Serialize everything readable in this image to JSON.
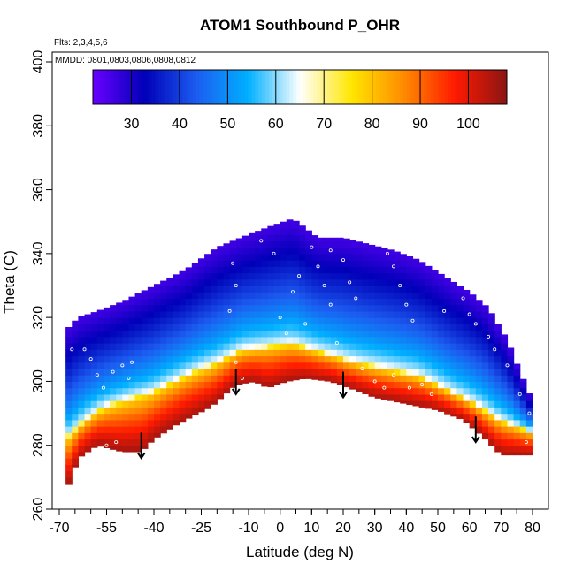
{
  "chart_data": {
    "type": "heatmap",
    "title": "ATOM1 Southbound P_OHR",
    "flights_note": "Flts: 2,3,4,5,6",
    "dates_note": "MMDD: 0801,0803,0806,0808,0812",
    "xlabel": "Latitude (deg N)",
    "ylabel": "Theta (C)",
    "xlim": [
      -70,
      80
    ],
    "ylim": [
      260,
      400
    ],
    "x_ticks": [
      -70,
      -55,
      -40,
      -25,
      -10,
      0,
      10,
      20,
      30,
      40,
      50,
      60,
      70,
      80
    ],
    "x_tick_labels": [
      "-70",
      "-55",
      "-40",
      "-25",
      "-10",
      "0",
      "10",
      "20",
      "30",
      "40",
      "50",
      "60",
      "70",
      "80"
    ],
    "y_ticks": [
      260,
      280,
      300,
      320,
      340,
      360,
      380,
      400
    ],
    "y_tick_labels": [
      "260",
      "280",
      "300",
      "320",
      "340",
      "360",
      "380",
      "400"
    ],
    "colorbar": {
      "range": [
        22,
        108
      ],
      "ticks": [
        30,
        40,
        50,
        60,
        70,
        80,
        90,
        100
      ],
      "tick_labels": [
        "30",
        "40",
        "50",
        "60",
        "70",
        "80",
        "90",
        "100"
      ],
      "palette": [
        "#6a00ff",
        "#0000b8",
        "#1c5cf0",
        "#00b0ff",
        "#ffffff",
        "#ffe600",
        "#ff8c00",
        "#ff1a00",
        "#8b1515"
      ]
    },
    "curtain": {
      "lat_start": -68,
      "lat_end": 80,
      "lat_step": 2,
      "bottom_profile": [
        [
          -68,
          265
        ],
        [
          -64,
          276
        ],
        [
          -58,
          280
        ],
        [
          -50,
          278
        ],
        [
          -44,
          278
        ],
        [
          -40,
          282
        ],
        [
          -32,
          287
        ],
        [
          -22,
          292
        ],
        [
          -14,
          299
        ],
        [
          -8,
          300
        ],
        [
          -4,
          298
        ],
        [
          2,
          300
        ],
        [
          8,
          301
        ],
        [
          16,
          300
        ],
        [
          22,
          298
        ],
        [
          30,
          295
        ],
        [
          40,
          293
        ],
        [
          50,
          291
        ],
        [
          58,
          288
        ],
        [
          64,
          283
        ],
        [
          70,
          277
        ],
        [
          80,
          277
        ]
      ],
      "top_profile": [
        [
          -68,
          316
        ],
        [
          -64,
          320
        ],
        [
          -58,
          322
        ],
        [
          -50,
          325
        ],
        [
          -40,
          330
        ],
        [
          -30,
          335
        ],
        [
          -20,
          342
        ],
        [
          -10,
          346
        ],
        [
          -2,
          349
        ],
        [
          4,
          351
        ],
        [
          12,
          345
        ],
        [
          20,
          345
        ],
        [
          28,
          343
        ],
        [
          36,
          341
        ],
        [
          44,
          338
        ],
        [
          52,
          333
        ],
        [
          60,
          328
        ],
        [
          66,
          323
        ],
        [
          72,
          313
        ],
        [
          76,
          303
        ],
        [
          80,
          294
        ]
      ],
      "transition_profile": [
        [
          -68,
          282
        ],
        [
          -62,
          288
        ],
        [
          -56,
          292
        ],
        [
          -50,
          294
        ],
        [
          -40,
          297
        ],
        [
          -30,
          302
        ],
        [
          -20,
          306
        ],
        [
          -12,
          310
        ],
        [
          -4,
          311
        ],
        [
          4,
          312
        ],
        [
          14,
          309
        ],
        [
          24,
          306
        ],
        [
          34,
          304
        ],
        [
          44,
          302
        ],
        [
          54,
          297
        ],
        [
          62,
          293
        ],
        [
          70,
          288
        ],
        [
          80,
          284
        ]
      ]
    },
    "arrows": [
      {
        "lat": -44,
        "theta_top": 284,
        "theta_tip": 276
      },
      {
        "lat": -14,
        "theta_top": 304,
        "theta_tip": 296
      },
      {
        "lat": 20,
        "theta_top": 303,
        "theta_tip": 295
      },
      {
        "lat": 62,
        "theta_top": 289,
        "theta_tip": 281
      }
    ],
    "sample_markers": [
      {
        "lat": -62,
        "theta": 310
      },
      {
        "lat": -60,
        "theta": 307
      },
      {
        "lat": -58,
        "theta": 302
      },
      {
        "lat": -56,
        "theta": 298
      },
      {
        "lat": -53,
        "theta": 303
      },
      {
        "lat": -50,
        "theta": 305
      },
      {
        "lat": -48,
        "theta": 301
      },
      {
        "lat": -47,
        "theta": 306
      },
      {
        "lat": -55,
        "theta": 280
      },
      {
        "lat": -52,
        "theta": 281
      },
      {
        "lat": -14,
        "theta": 306
      },
      {
        "lat": -12,
        "theta": 301
      },
      {
        "lat": -16,
        "theta": 322
      },
      {
        "lat": -14,
        "theta": 330
      },
      {
        "lat": -15,
        "theta": 337
      },
      {
        "lat": -6,
        "theta": 344
      },
      {
        "lat": -4,
        "theta": 350
      },
      {
        "lat": -2,
        "theta": 340
      },
      {
        "lat": 0,
        "theta": 320
      },
      {
        "lat": 2,
        "theta": 315
      },
      {
        "lat": 4,
        "theta": 328
      },
      {
        "lat": 6,
        "theta": 333
      },
      {
        "lat": 8,
        "theta": 318
      },
      {
        "lat": 10,
        "theta": 342
      },
      {
        "lat": 12,
        "theta": 336
      },
      {
        "lat": 14,
        "theta": 330
      },
      {
        "lat": 16,
        "theta": 324
      },
      {
        "lat": 18,
        "theta": 312
      },
      {
        "lat": 20,
        "theta": 338
      },
      {
        "lat": 22,
        "theta": 331
      },
      {
        "lat": 24,
        "theta": 326
      },
      {
        "lat": 16,
        "theta": 341
      },
      {
        "lat": 26,
        "theta": 304
      },
      {
        "lat": 30,
        "theta": 300
      },
      {
        "lat": 33,
        "theta": 298
      },
      {
        "lat": 36,
        "theta": 302
      },
      {
        "lat": 34,
        "theta": 340
      },
      {
        "lat": 36,
        "theta": 336
      },
      {
        "lat": 38,
        "theta": 330
      },
      {
        "lat": 40,
        "theta": 324
      },
      {
        "lat": 42,
        "theta": 319
      },
      {
        "lat": 41,
        "theta": 298
      },
      {
        "lat": 45,
        "theta": 299
      },
      {
        "lat": 48,
        "theta": 296
      },
      {
        "lat": 52,
        "theta": 322
      },
      {
        "lat": 58,
        "theta": 326
      },
      {
        "lat": 60,
        "theta": 321
      },
      {
        "lat": 62,
        "theta": 318
      },
      {
        "lat": 64,
        "theta": 329
      },
      {
        "lat": 66,
        "theta": 314
      },
      {
        "lat": 68,
        "theta": 310
      },
      {
        "lat": 72,
        "theta": 305
      },
      {
        "lat": 78,
        "theta": 281
      },
      {
        "lat": 79,
        "theta": 290
      },
      {
        "lat": 76,
        "theta": 296
      },
      {
        "lat": -66,
        "theta": 310
      }
    ]
  }
}
